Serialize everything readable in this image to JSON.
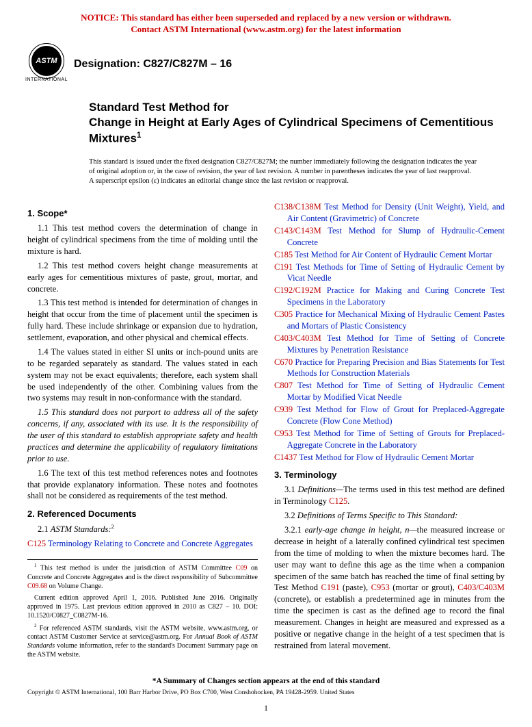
{
  "notice": {
    "line1": "NOTICE: This standard has either been superseded and replaced by a new version or withdrawn.",
    "line2": "Contact ASTM International (www.astm.org) for the latest information"
  },
  "logo": {
    "abbr": "ASTM",
    "sub": "INTERNATIONAL"
  },
  "designation": "Designation: C827/C827M – 16",
  "title": {
    "pre": "Standard Test Method for",
    "main": "Change in Height at Early Ages of Cylindrical Specimens of Cementitious Mixtures",
    "sup": "1"
  },
  "issue_note": "This standard is issued under the fixed designation C827/C827M; the number immediately following the designation indicates the year of original adoption or, in the case of revision, the year of last revision. A number in parentheses indicates the year of last reapproval. A superscript epsilon (ε) indicates an editorial change since the last revision or reapproval.",
  "scope": {
    "head": "1. Scope*",
    "p1": "1.1 This test method covers the determination of change in height of cylindrical specimens from the time of molding until the mixture is hard.",
    "p2": "1.2 This test method covers height change measurements at early ages for cementitious mixtures of paste, grout, mortar, and concrete.",
    "p3": "1.3 This test method is intended for determination of changes in height that occur from the time of placement until the specimen is fully hard. These include shrinkage or expansion due to hydration, settlement, evaporation, and other physical and chemical effects.",
    "p4": "1.4 The values stated in either SI units or inch-pound units are to be regarded separately as standard. The values stated in each system may not be exact equivalents; therefore, each system shall be used independently of the other. Combining values from the two systems may result in non-conformance with the standard.",
    "p5": "1.5 This standard does not purport to address all of the safety concerns, if any, associated with its use. It is the responsibility of the user of this standard to establish appropriate safety and health practices and determine the applicability of regulatory limitations prior to use.",
    "p6": "1.6 The text of this test method references notes and footnotes that provide explanatory information. These notes and footnotes shall not be considered as requirements of the test method."
  },
  "refdocs": {
    "head": "2. Referenced Documents",
    "sub": "2.1 ",
    "sub_italic": "ASTM Standards:",
    "sub_sup": "2",
    "items": [
      {
        "code": "C125",
        "text": " Terminology Relating to Concrete and Concrete Aggregates"
      },
      {
        "code": "C138/C138M",
        "text": " Test Method for Density (Unit Weight), Yield, and Air Content (Gravimetric) of Concrete"
      },
      {
        "code": "C143/C143M",
        "text": " Test Method for Slump of Hydraulic-Cement Concrete"
      },
      {
        "code": "C185",
        "text": " Test Method for Air Content of Hydraulic Cement Mortar"
      },
      {
        "code": "C191",
        "text": " Test Methods for Time of Setting of Hydraulic Cement by Vicat Needle"
      },
      {
        "code": "C192/C192M",
        "text": " Practice for Making and Curing Concrete Test Specimens in the Laboratory"
      },
      {
        "code": "C305",
        "text": " Practice for Mechanical Mixing of Hydraulic Cement Pastes and Mortars of Plastic Consistency"
      },
      {
        "code": "C403/C403M",
        "text": " Test Method for Time of Setting of Concrete Mixtures by Penetration Resistance"
      },
      {
        "code": "C670",
        "text": " Practice for Preparing Precision and Bias Statements for Test Methods for Construction Materials"
      },
      {
        "code": "C807",
        "text": " Test Method for Time of Setting of Hydraulic Cement Mortar by Modified Vicat Needle"
      },
      {
        "code": "C939",
        "text": " Test Method for Flow of Grout for Preplaced-Aggregate Concrete (Flow Cone Method)"
      },
      {
        "code": "C953",
        "text": " Test Method for Time of Setting of Grouts for Preplaced-Aggregate Concrete in the Laboratory"
      },
      {
        "code": "C1437",
        "text": " Test Method for Flow of Hydraulic Cement Mortar"
      }
    ]
  },
  "terminology": {
    "head": "3. Terminology",
    "p1_pre": "3.1 ",
    "p1_it": "Definitions—",
    "p1_post": "The terms used in this test method are defined in Terminology ",
    "p1_code": "C125",
    "p1_end": ".",
    "p2_pre": "3.2 ",
    "p2_it": "Definitions of Terms Specific to This Standard:",
    "p3_pre": "3.2.1 ",
    "p3_term": "early-age change in height, n—",
    "p3_a": "the measured increase or decrease in height of a laterally confined cylindrical test specimen from the time of molding to when the mixture becomes hard. The user may want to define this age as the time when a companion specimen of the same batch has reached the time of final setting by Test Method ",
    "p3_c1": "C191",
    "p3_b": " (paste), ",
    "p3_c2": "C953",
    "p3_c": " (mortar or grout), ",
    "p3_c3": "C403/C403M",
    "p3_d": " (concrete), or establish a predetermined age in minutes from the time the specimen is cast as the defined age to record the final measurement. Changes in height are measured and expressed as a positive or negative change in the height of a test specimen that is restrained from lateral movement."
  },
  "footnotes": {
    "f1_a": " This test method is under the jurisdiction of ASTM Committee ",
    "f1_code1": "C09",
    "f1_b": " on Concrete and Concrete Aggregates and is the direct responsibility of Subcommittee ",
    "f1_code2": "C09.68",
    "f1_c": " on Volume Change.",
    "f1_d": "Current edition approved April 1, 2016. Published June 2016. Originally approved in 1975. Last previous edition approved in 2010 as C827 – 10. DOI: 10.1520/C0827_C0827M-16.",
    "f2_a": " For referenced ASTM standards, visit the ASTM website, www.astm.org, or contact ASTM Customer Service at service@astm.org. For ",
    "f2_it": "Annual Book of ASTM Standards",
    "f2_b": " volume information, refer to the standard's Document Summary page on the ASTM website."
  },
  "summary_note": "*A Summary of Changes section appears at the end of this standard",
  "copyright": "Copyright © ASTM International, 100 Barr Harbor Drive, PO Box C700, West Conshohocken, PA 19428-2959. United States",
  "page_num": "1",
  "colors": {
    "notice": "#d00000",
    "link": "#0020c0",
    "code": "#c00000"
  }
}
